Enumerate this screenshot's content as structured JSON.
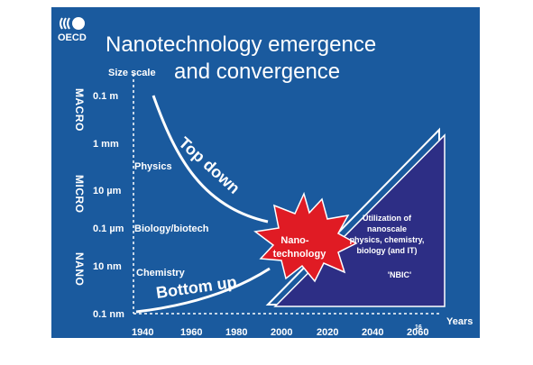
{
  "logo_text": "OECD",
  "title_line1": "Nanotechnology emergence",
  "title_line2": "and convergence",
  "size_scale_label": "Size scale",
  "axis_categories": [
    "MACRO",
    "MICRO",
    "NANO"
  ],
  "size_ticks": [
    "0.1 m",
    "1 mm",
    "10 µm",
    "0.1 µm",
    "10 nm",
    "0.1 nm"
  ],
  "domains": [
    "Physics",
    "Biology/biotech",
    "Chemistry"
  ],
  "top_down_label": "Top down",
  "bottom_up_label": "Bottom up",
  "burst_label_line1": "Nano-",
  "burst_label_line2": "technology",
  "triangle_text": [
    "Utilization of",
    "nanoscale",
    "physics, chemistry,",
    "biology (and IT)"
  ],
  "nbic_label": "'NBIC'",
  "years_label": "Years",
  "page_number": "16",
  "years": [
    "1940",
    "1960",
    "1980",
    "2000",
    "2020",
    "2040",
    "2060"
  ],
  "colors": {
    "background": "#1a5a9e",
    "triangle": "#2d2e85",
    "burst": "#e01b24",
    "text": "#ffffff"
  }
}
